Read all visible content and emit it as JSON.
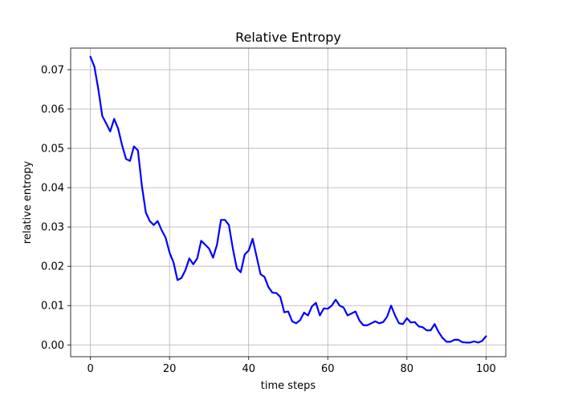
{
  "chart_data": {
    "type": "line",
    "title": "Relative Entropy",
    "xlabel": "time steps",
    "ylabel": "relative entropy",
    "xlim": [
      -5,
      105
    ],
    "ylim": [
      -0.003,
      0.0755
    ],
    "x_ticks": [
      0,
      20,
      40,
      60,
      80,
      100
    ],
    "x_tick_labels": [
      "0",
      "20",
      "40",
      "60",
      "80",
      "100"
    ],
    "y_ticks": [
      0.0,
      0.01,
      0.02,
      0.03,
      0.04,
      0.05,
      0.06,
      0.07
    ],
    "y_tick_labels": [
      "0.00",
      "0.01",
      "0.02",
      "0.03",
      "0.04",
      "0.05",
      "0.06",
      "0.07"
    ],
    "grid": true,
    "series": [
      {
        "color": "#0000ff",
        "x": [
          0,
          1,
          2,
          3,
          4,
          5,
          6,
          7,
          8,
          9,
          10,
          11,
          12,
          13,
          14,
          15,
          16,
          17,
          18,
          19,
          20,
          21,
          22,
          23,
          24,
          25,
          26,
          27,
          28,
          29,
          30,
          31,
          32,
          33,
          34,
          35,
          36,
          37,
          38,
          39,
          40,
          41,
          42,
          43,
          44,
          45,
          46,
          47,
          48,
          49,
          50,
          51,
          52,
          53,
          54,
          55,
          56,
          57,
          58,
          59,
          60,
          61,
          62,
          63,
          64,
          65,
          66,
          67,
          68,
          69,
          70,
          71,
          72,
          73,
          74,
          75,
          76,
          77,
          78,
          79,
          80,
          81,
          82,
          83,
          84,
          85,
          86,
          87,
          88,
          89,
          90,
          91,
          92,
          93,
          94,
          95,
          96,
          97,
          98,
          99,
          100
        ],
        "y": [
          0.0733,
          0.0708,
          0.065,
          0.0582,
          0.0563,
          0.0543,
          0.0575,
          0.055,
          0.0508,
          0.0473,
          0.0468,
          0.0505,
          0.0495,
          0.0405,
          0.0337,
          0.0315,
          0.0305,
          0.0315,
          0.0292,
          0.0273,
          0.0235,
          0.021,
          0.0165,
          0.017,
          0.019,
          0.022,
          0.0205,
          0.022,
          0.0265,
          0.0255,
          0.0245,
          0.0222,
          0.0255,
          0.0318,
          0.0318,
          0.0305,
          0.0245,
          0.0195,
          0.0185,
          0.023,
          0.024,
          0.027,
          0.0225,
          0.018,
          0.0173,
          0.0147,
          0.0133,
          0.0132,
          0.0122,
          0.0083,
          0.0085,
          0.006,
          0.0055,
          0.0063,
          0.0082,
          0.0075,
          0.0098,
          0.0107,
          0.0075,
          0.0093,
          0.0092,
          0.01,
          0.0115,
          0.01,
          0.0095,
          0.0075,
          0.008,
          0.0085,
          0.0062,
          0.005,
          0.005,
          0.0055,
          0.006,
          0.0055,
          0.0058,
          0.0072,
          0.01,
          0.0075,
          0.0055,
          0.0053,
          0.0068,
          0.0057,
          0.0058,
          0.0047,
          0.0045,
          0.0037,
          0.0037,
          0.0053,
          0.0033,
          0.0018,
          0.0008,
          0.0008,
          0.0013,
          0.0013,
          0.0007,
          0.0006,
          0.0006,
          0.0009,
          0.0006,
          0.001,
          0.0022
        ]
      }
    ]
  }
}
